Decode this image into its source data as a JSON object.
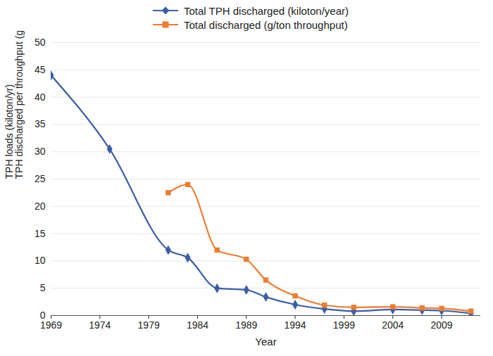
{
  "chart_data": {
    "type": "line",
    "ylabel": [
      "TPH loads (kiloton/yr)",
      "TPH discharged per throughput (g/ton)"
    ],
    "xlabel": "Year",
    "x": [
      1969,
      1975,
      1981,
      1983,
      1986,
      1989,
      1991,
      1994,
      1997,
      2000,
      2004,
      2007,
      2009,
      2012
    ],
    "series": [
      {
        "name": "Total TPH discharged (kiloton/year)",
        "color": "#3b5ea8",
        "marker": "diamond",
        "values": [
          44,
          30.5,
          12,
          10.6,
          5,
          4.7,
          3.4,
          2.0,
          1.2,
          0.8,
          1.1,
          1.0,
          0.9,
          0.4
        ]
      },
      {
        "name": "Total discharged (g/ton throughput)",
        "color": "#ed7d31",
        "marker": "square",
        "values": [
          null,
          null,
          22.5,
          24,
          12,
          10.3,
          6.5,
          3.6,
          1.9,
          1.5,
          1.6,
          1.4,
          1.3,
          0.8
        ]
      }
    ],
    "xlim": [
      1969,
      2013
    ],
    "xticks": [
      1969,
      1974,
      1979,
      1984,
      1989,
      1994,
      1999,
      2004,
      2009
    ],
    "ylim": [
      0,
      50
    ],
    "yticks": [
      0,
      5,
      10,
      15,
      20,
      25,
      30,
      35,
      40,
      45,
      50
    ],
    "grid": true,
    "legend": "top"
  }
}
